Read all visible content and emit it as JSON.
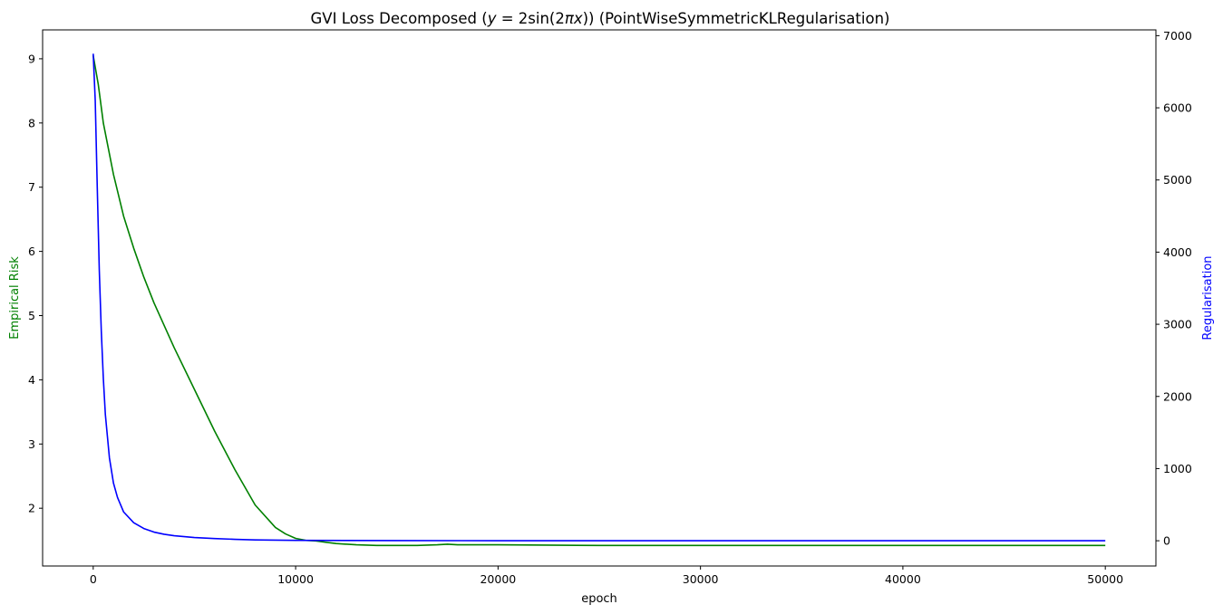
{
  "chart_data": {
    "type": "line",
    "title": "GVI Loss Decomposed (y = 2sin(2πx)) (PointWiseSymmetricKLRegularisation)",
    "title_parts": {
      "prefix": "GVI Loss Decomposed (",
      "y": "y",
      "eq": " = 2sin(2",
      "pi": "π",
      "x": "x",
      "suffix": ")) (PointWiseSymmetricKLRegularisation)"
    },
    "xlabel": "epoch",
    "ylabel_left": "Empirical Risk",
    "ylabel_right": "Regularisation",
    "xlim": [
      -2500,
      52500
    ],
    "ylim_left": [
      1.1,
      9.45
    ],
    "ylim_right": [
      -350,
      7080
    ],
    "x_ticks": [
      0,
      10000,
      20000,
      30000,
      40000,
      50000
    ],
    "x_tick_labels": [
      "0",
      "10000",
      "20000",
      "30000",
      "40000",
      "50000"
    ],
    "y_left_ticks": [
      2,
      3,
      4,
      5,
      6,
      7,
      8,
      9
    ],
    "y_left_tick_labels": [
      "2",
      "3",
      "4",
      "5",
      "6",
      "7",
      "8",
      "9"
    ],
    "y_right_ticks": [
      0,
      1000,
      2000,
      3000,
      4000,
      5000,
      6000,
      7000
    ],
    "y_right_tick_labels": [
      "0",
      "1000",
      "2000",
      "3000",
      "4000",
      "5000",
      "6000",
      "7000"
    ],
    "grid": false,
    "legend": "none",
    "colors": {
      "empirical_risk": "#008000",
      "regularisation": "#0000ff",
      "left_label": "#008000",
      "right_label": "#0000ff"
    },
    "series": [
      {
        "axis": "left",
        "x": [
          0,
          250,
          500,
          1000,
          1500,
          2000,
          2500,
          3000,
          4000,
          5000,
          6000,
          7000,
          8000,
          9000,
          9500,
          10000,
          10500,
          11000,
          11500,
          12000,
          13000,
          14000,
          15000,
          16000,
          17000,
          17500,
          18000,
          20000,
          25000,
          30000,
          35000,
          40000,
          45000,
          50000
        ],
        "values": [
          9.05,
          8.6,
          8.0,
          7.2,
          6.55,
          6.05,
          5.6,
          5.2,
          4.5,
          3.85,
          3.2,
          2.6,
          2.05,
          1.7,
          1.6,
          1.53,
          1.5,
          1.49,
          1.47,
          1.45,
          1.43,
          1.42,
          1.42,
          1.42,
          1.43,
          1.44,
          1.43,
          1.43,
          1.42,
          1.42,
          1.42,
          1.42,
          1.42,
          1.42
        ]
      },
      {
        "axis": "right",
        "x": [
          0,
          100,
          200,
          300,
          400,
          500,
          600,
          800,
          1000,
          1200,
          1500,
          2000,
          2500,
          3000,
          3500,
          4000,
          5000,
          6000,
          7000,
          8000,
          10000,
          15000,
          20000,
          30000,
          40000,
          50000
        ],
        "values": [
          6750,
          6100,
          4900,
          3750,
          2900,
          2250,
          1750,
          1150,
          800,
          600,
          400,
          250,
          170,
          120,
          90,
          70,
          45,
          30,
          20,
          12,
          5,
          2,
          1,
          0,
          0,
          0
        ]
      }
    ]
  }
}
